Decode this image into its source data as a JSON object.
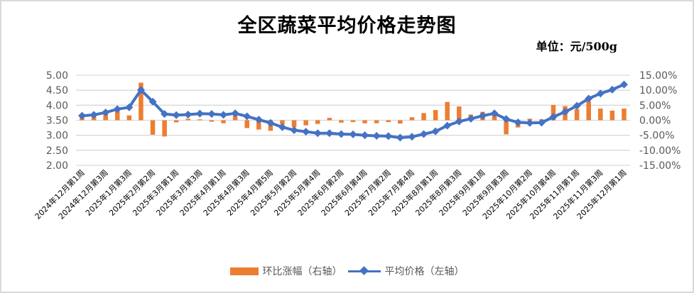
{
  "title": "全区蔬菜平均价格走势图",
  "unit": "单位：元/500g",
  "legend": {
    "bar_label": "环比涨幅（右轴）",
    "line_label": "平均价格（左轴）"
  },
  "colors": {
    "bar": "#ED7D31",
    "line": "#4472C4",
    "grid": "#d9d9d9"
  },
  "chart_data": {
    "type": "bar+line",
    "title": "全区蔬菜平均价格走势图",
    "subtitle": "单位：元/500g",
    "left_axis": {
      "label": "平均价格",
      "ticks": [
        "5.00",
        "4.50",
        "4.00",
        "3.50",
        "3.00",
        "2.50",
        "2.00"
      ],
      "ylim": [
        2.0,
        5.0
      ]
    },
    "right_axis": {
      "label": "环比涨幅",
      "ticks": [
        "15.00%",
        "10.00%",
        "5.00%",
        "0.00%",
        "-5.00%",
        "-10.00%",
        "-15.00%"
      ],
      "ylim": [
        -15,
        15
      ]
    },
    "x_tick_labels": [
      "2024年12月第1周",
      "2024年12月第3周",
      "2025年1月第3周",
      "2025年2月第2周",
      "2025年3月第1周",
      "2025年3月第3周",
      "2025年4月第1周",
      "2025年4月第3周",
      "2025年4月第5周",
      "2025年5月第2周",
      "2025年5月第4周",
      "2025年6月第2周",
      "2025年6月第4周",
      "2025年7月第2周",
      "2025年7月第4周",
      "2025年8月第1周",
      "2025年8月第3周",
      "2025年9月第1周",
      "2025年9月第3周",
      "2025年10月第2周",
      "2025年10月第4周",
      "2025年11月第1周",
      "2025年11月第3周",
      "2025年12月第1周"
    ],
    "x_tick_every": 2,
    "grid": true,
    "legend_position": "bottom",
    "series": [
      {
        "name": "环比涨幅（右轴）",
        "type": "bar",
        "axis": "right",
        "values": [
          1.0,
          1.2,
          2.2,
          3.0,
          1.6,
          12.5,
          -4.8,
          -5.4,
          -0.7,
          0.5,
          0.3,
          -0.5,
          -1.0,
          1.6,
          -2.6,
          -3.1,
          -3.5,
          -1.4,
          -2.3,
          -1.7,
          -1.2,
          0.8,
          -0.8,
          -0.6,
          -1.0,
          -1.0,
          -0.6,
          -1.1,
          1.0,
          2.4,
          3.4,
          6.1,
          4.6,
          1.9,
          2.8,
          2.1,
          -4.7,
          -2.4,
          0.5,
          0.3,
          5.1,
          4.7,
          3.7,
          6.3,
          3.9,
          3.2,
          3.9
        ]
      },
      {
        "name": "平均价格（左轴）",
        "type": "line",
        "axis": "left",
        "values": [
          3.65,
          3.68,
          3.76,
          3.87,
          3.93,
          4.51,
          4.12,
          3.71,
          3.67,
          3.69,
          3.72,
          3.71,
          3.68,
          3.73,
          3.63,
          3.52,
          3.41,
          3.27,
          3.17,
          3.12,
          3.07,
          3.07,
          3.04,
          3.03,
          3.0,
          2.98,
          2.97,
          2.92,
          2.95,
          3.04,
          3.13,
          3.32,
          3.46,
          3.55,
          3.65,
          3.73,
          3.54,
          3.43,
          3.41,
          3.42,
          3.61,
          3.78,
          3.98,
          4.22,
          4.39,
          4.52,
          4.69
        ]
      }
    ]
  }
}
